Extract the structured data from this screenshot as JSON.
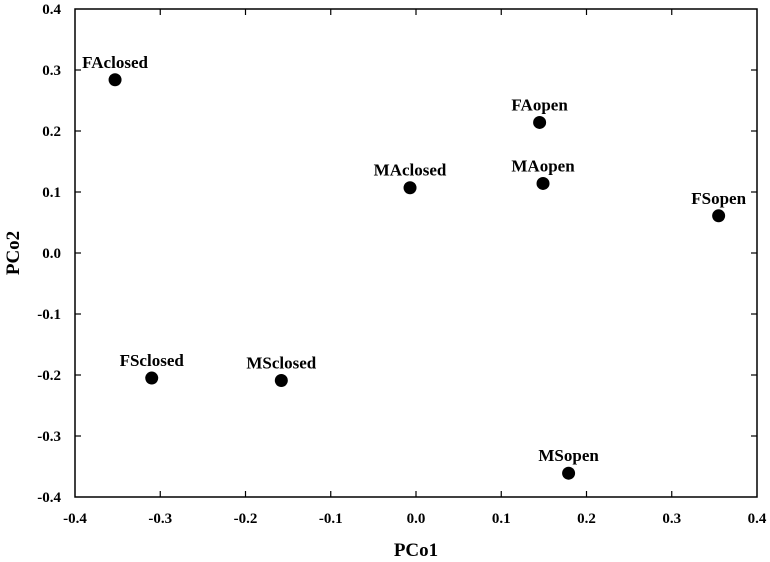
{
  "chart_data": {
    "type": "scatter",
    "title": "",
    "xlabel": "PCo1",
    "ylabel": "PCo2",
    "xlim": [
      -0.4,
      0.4
    ],
    "ylim": [
      -0.4,
      0.4
    ],
    "xticks": [
      "-0.4",
      "-0.3",
      "-0.2",
      "-0.1",
      "0.0",
      "0.1",
      "0.2",
      "0.3",
      "0.4"
    ],
    "yticks": [
      "0.4",
      "0.3",
      "0.2",
      "0.1",
      "0.0",
      "-0.1",
      "-0.2",
      "-0.3",
      "-0.4"
    ],
    "grid": false,
    "marker_color": "#000000",
    "points": [
      {
        "label": "FAclosed",
        "x": -0.353,
        "y": 0.284
      },
      {
        "label": "FAopen",
        "x": 0.145,
        "y": 0.214
      },
      {
        "label": "MAclosed",
        "x": -0.007,
        "y": 0.107
      },
      {
        "label": "MAopen",
        "x": 0.149,
        "y": 0.114
      },
      {
        "label": "FSopen",
        "x": 0.355,
        "y": 0.061
      },
      {
        "label": "FSclosed",
        "x": -0.31,
        "y": -0.205
      },
      {
        "label": "MSclosed",
        "x": -0.158,
        "y": -0.209
      },
      {
        "label": "MSopen",
        "x": 0.179,
        "y": -0.361
      }
    ]
  }
}
